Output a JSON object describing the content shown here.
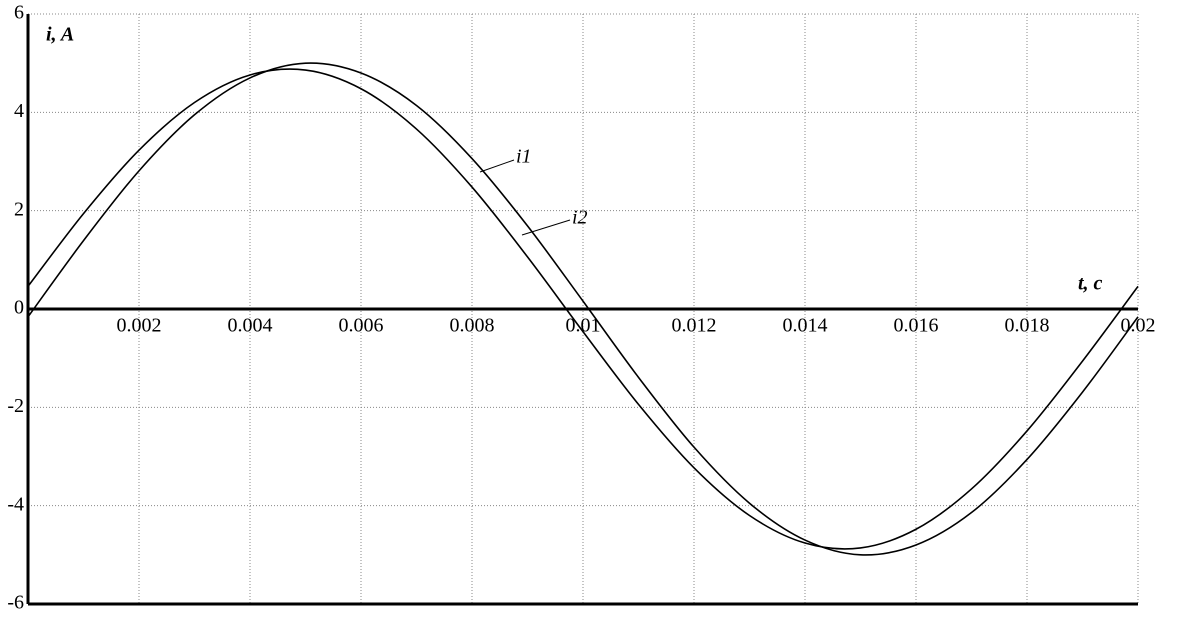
{
  "chart_data": {
    "type": "line",
    "x_label": "t, c",
    "y_label": "i, A",
    "x": [
      0,
      0.001,
      0.002,
      0.003,
      0.004,
      0.005,
      0.006,
      0.007,
      0.008,
      0.009,
      0.01,
      0.011,
      0.012,
      0.013,
      0.014,
      0.015,
      0.016,
      0.017,
      0.018,
      0.019,
      0.02
    ],
    "series": [
      {
        "name": "i1",
        "color": "#000000",
        "values": [
          -0.16,
          1.39,
          2.81,
          3.95,
          4.7,
          5.0,
          4.8,
          4.14,
          3.06,
          1.69,
          0.16,
          -1.39,
          -2.81,
          -3.95,
          -4.7,
          -5.0,
          -4.8,
          -4.14,
          -3.06,
          -1.69,
          -0.16
        ]
      },
      {
        "name": "i2",
        "color": "#000000",
        "values": [
          0.46,
          1.94,
          3.23,
          4.2,
          4.76,
          4.86,
          4.48,
          3.66,
          2.48,
          1.06,
          -0.46,
          -1.94,
          -3.23,
          -4.2,
          -4.76,
          -4.86,
          -4.48,
          -3.66,
          -2.48,
          -1.06,
          0.46
        ]
      }
    ],
    "xlim": [
      0,
      0.02
    ],
    "ylim": [
      -6,
      6
    ],
    "xticks": [
      0.002,
      0.004,
      0.006,
      0.008,
      0.01,
      0.012,
      0.014,
      0.016,
      0.018,
      0.02
    ],
    "yticks": [
      -6,
      -4,
      -2,
      0,
      2,
      4,
      6
    ],
    "grid": true
  }
}
